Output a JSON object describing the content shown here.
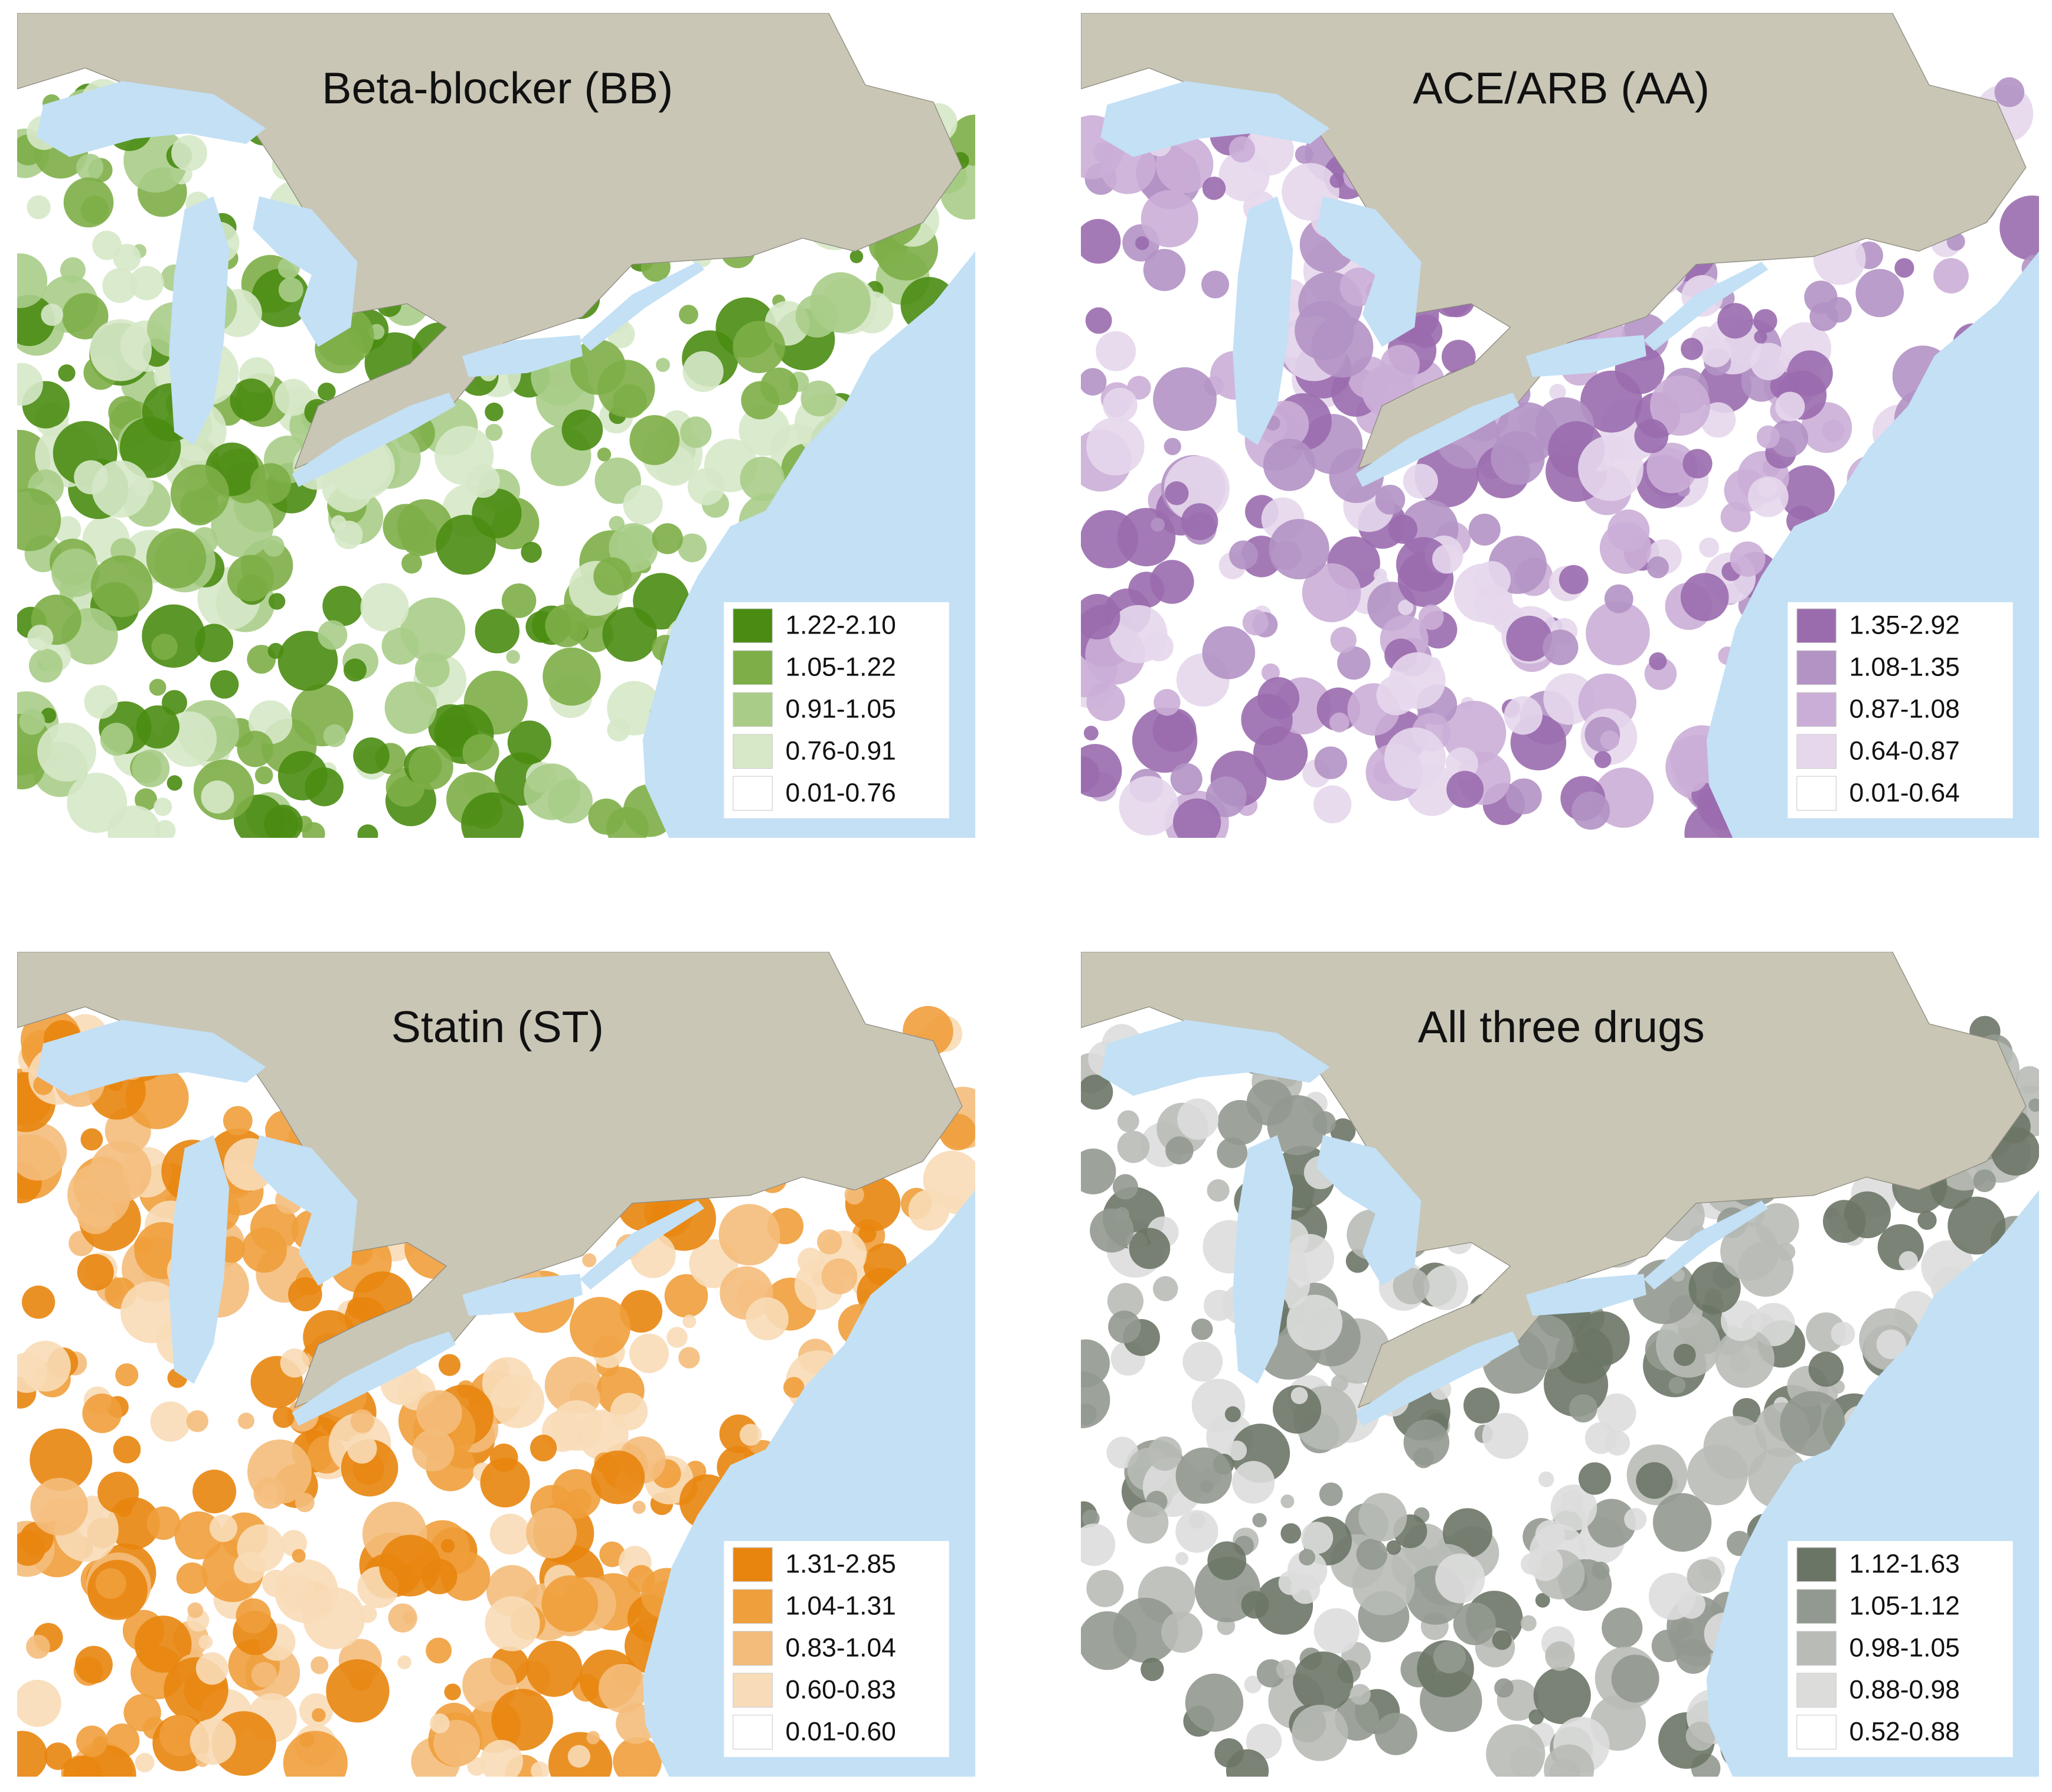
{
  "maps": [
    {
      "title": "Beta-blocker (BB)",
      "legend": [
        {
          "label": "1.22-2.10",
          "color": "#4a8c12"
        },
        {
          "label": "1.05-1.22",
          "color": "#7dae47"
        },
        {
          "label": "0.91-1.05",
          "color": "#a9cd88"
        },
        {
          "label": "0.76-0.91",
          "color": "#d6e8c8"
        },
        {
          "label": "0.01-0.76",
          "color": "#ffffff"
        }
      ]
    },
    {
      "title": "ACE/ARB (AA)",
      "legend": [
        {
          "label": "1.35-2.92",
          "color": "#9a6cae"
        },
        {
          "label": "1.08-1.35",
          "color": "#b392c4"
        },
        {
          "label": "0.87-1.08",
          "color": "#cbaed7"
        },
        {
          "label": "0.64-0.87",
          "color": "#e6d7ec"
        },
        {
          "label": "0.01-0.64",
          "color": "#ffffff"
        }
      ]
    },
    {
      "title": "Statin (ST)",
      "legend": [
        {
          "label": "1.31-2.85",
          "color": "#e8850e"
        },
        {
          "label": "1.04-1.31",
          "color": "#ef9f3b"
        },
        {
          "label": "0.83-1.04",
          "color": "#f4bc7b"
        },
        {
          "label": "0.60-0.83",
          "color": "#f8dcb7"
        },
        {
          "label": "0.01-0.60",
          "color": "#ffffff"
        }
      ]
    },
    {
      "title": "All three drugs",
      "legend": [
        {
          "label": "1.12-1.63",
          "color": "#6b7566"
        },
        {
          "label": "1.05-1.12",
          "color": "#929990"
        },
        {
          "label": "0.98-1.05",
          "color": "#b8bbb6"
        },
        {
          "label": "0.88-0.98",
          "color": "#dcdddb"
        },
        {
          "label": "0.52-0.88",
          "color": "#ffffff"
        }
      ]
    }
  ]
}
